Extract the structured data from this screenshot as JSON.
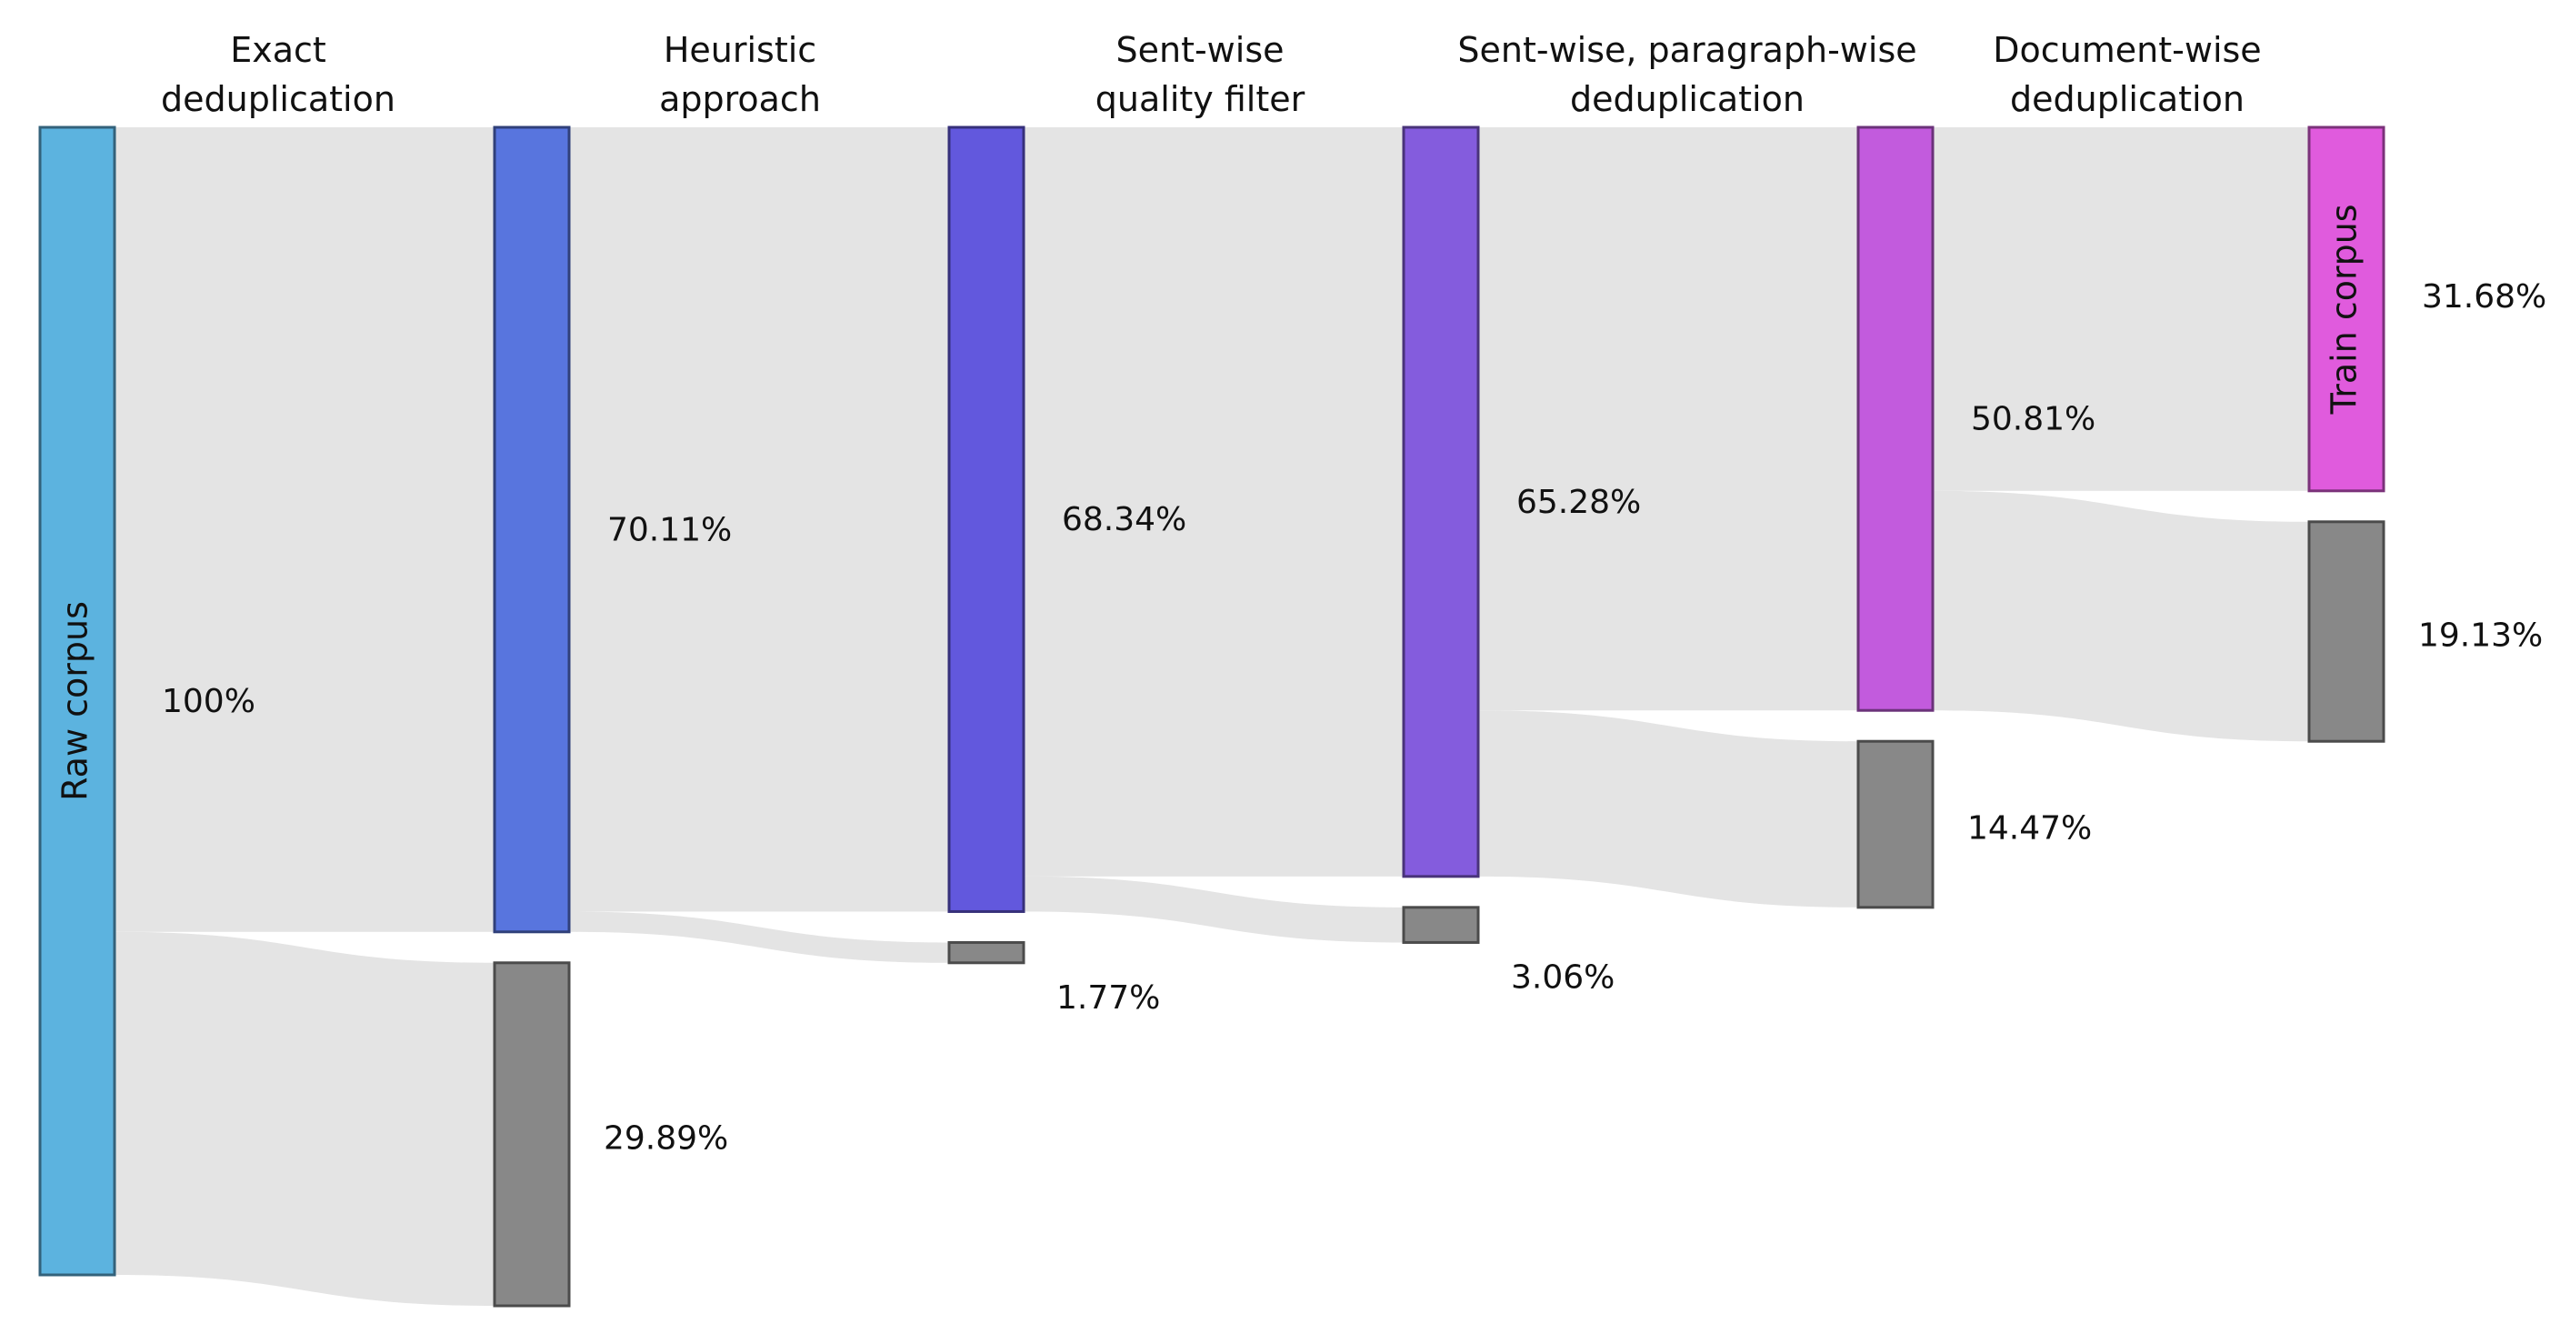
{
  "chart_data": {
    "type": "sankey",
    "stages": [
      {
        "label": [
          "Exact",
          "deduplication"
        ]
      },
      {
        "label": [
          "Heuristic",
          "approach"
        ]
      },
      {
        "label": [
          "Sent-wise",
          "quality filter"
        ]
      },
      {
        "label": [
          "Sent-wise, paragraph-wise",
          "deduplication"
        ]
      },
      {
        "label": [
          "Document-wise",
          "deduplication"
        ]
      }
    ],
    "levels": [
      {
        "kept": 100,
        "kept_label": "100%",
        "kept_name": "Raw corpus",
        "kept_color": "#5cb3df"
      },
      {
        "kept": 70.11,
        "kept_label": "70.11%",
        "kept_color": "#5875de",
        "removed": 29.89,
        "removed_label": "29.89%"
      },
      {
        "kept": 68.34,
        "kept_label": "68.34%",
        "kept_color": "#6258dd",
        "removed": 1.77,
        "removed_label": "1.77%"
      },
      {
        "kept": 65.28,
        "kept_label": "65.28%",
        "kept_color": "#845cdd",
        "removed": 3.06,
        "removed_label": "3.06%"
      },
      {
        "kept": 50.81,
        "kept_label": "50.81%",
        "kept_color": "#c25bdd",
        "removed": 14.47,
        "removed_label": "14.47%"
      },
      {
        "kept": 31.68,
        "kept_label": "31.68%",
        "kept_name": "Train corpus",
        "kept_color": "#e05bdd",
        "removed": 19.13,
        "removed_label": "19.13%"
      }
    ],
    "removed_color": "#888888",
    "flow_color": "#e4e4e4"
  }
}
